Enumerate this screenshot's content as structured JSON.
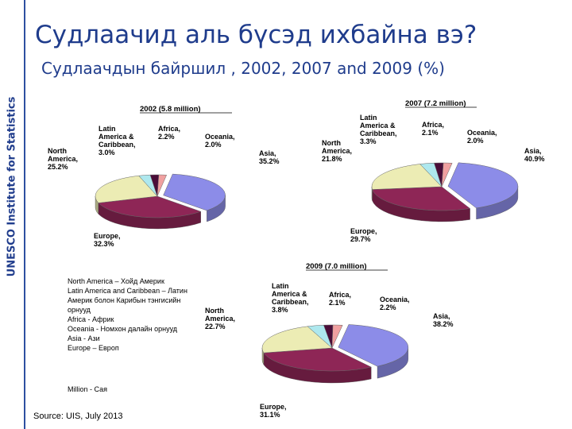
{
  "sidebar": {
    "label": "UNESCO Institute for Statistics"
  },
  "title": "Судлаачид аль бүсэд ихбайна вэ?",
  "subtitle": "Судлаачдын байршил , 2002, 2007 and 2009 (%)",
  "colors": {
    "Asia": "#8c8ce8",
    "Europe": "#8e2656",
    "North America": "#ececb4",
    "Latin America & Caribbean": "#aee8ee",
    "Africa": "#4a0d38",
    "Oceania": "#f0a0a0"
  },
  "chart_data": [
    {
      "type": "pie",
      "title": "2002 (5.8 million)",
      "labels": [
        "Asia",
        "Europe",
        "North America",
        "Latin America & Caribbean",
        "Africa",
        "Oceania"
      ],
      "label_texts": [
        "Asia,|35.2%",
        "Europe,|32.3%",
        "North|America,|25.2%",
        "Latin|America &|Caribbean,|3.0%",
        "Africa,|2.2%",
        "Oceania,|2.0%"
      ],
      "values": [
        35.2,
        32.3,
        25.2,
        3.0,
        2.2,
        2.0
      ]
    },
    {
      "type": "pie",
      "title": "2007 (7.2 million)",
      "labels": [
        "Asia",
        "Europe",
        "North America",
        "Latin America & Caribbean",
        "Africa",
        "Oceania"
      ],
      "label_texts": [
        "Asia,|40.9%",
        "Europe,|29.7%",
        "North|America,|21.8%",
        "Latin|America &|Caribbean,|3.3%",
        "Africa,|2.1%",
        "Oceania,|2.0%"
      ],
      "values": [
        40.9,
        29.7,
        21.8,
        3.3,
        2.1,
        2.0
      ]
    },
    {
      "type": "pie",
      "title": "2009 (7.0 million)",
      "labels": [
        "Asia",
        "Europe",
        "North America",
        "Latin America & Caribbean",
        "Africa",
        "Oceania"
      ],
      "label_texts": [
        "Asia,|38.2%",
        "Europe,|31.1%",
        "North|America,|22.7%",
        "Latin|America &|Caribbean,|3.8%",
        "Africa,|2.1%",
        "Oceania,|2.2%"
      ],
      "values": [
        38.2,
        31.1,
        22.7,
        3.8,
        2.1,
        2.2
      ]
    }
  ],
  "legend_notes": [
    "North America – Хойд Америк",
    "Latin America and Caribbean – Латин",
    "Америк болон Карибын тэнгисийн",
    "орнууд",
    "Africa - Африк",
    "Oceania - Номхон далайн орнууд",
    "Asia - Ази",
    "Europe – Европ"
  ],
  "million_note": "Million - Сая",
  "source": "Source: UIS, July 2013"
}
